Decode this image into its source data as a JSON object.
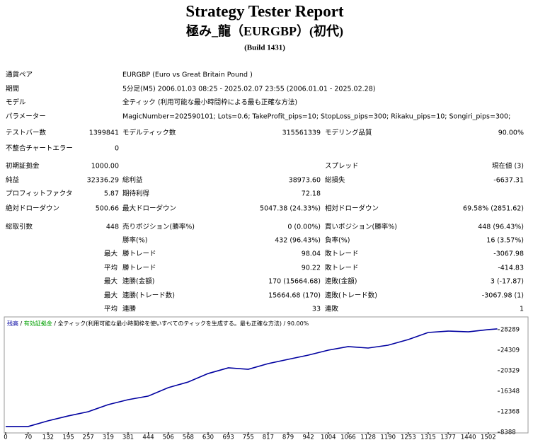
{
  "header": {
    "title": "Strategy Tester Report",
    "subtitle": "極み_龍（EURGBP）(初代)",
    "build": "(Build 1431)"
  },
  "info": [
    [
      "通貨ペア",
      "EURGBP (Euro vs Great Britain Pound )"
    ],
    [
      "期間",
      "5分足(M5) 2006.01.03 08:25 - 2025.02.07 23:55 (2006.01.01 - 2025.02.28)"
    ],
    [
      "モデル",
      "全ティック (利用可能な最小時間枠による最も正確な方法)"
    ],
    [
      "パラメーター",
      "MagicNumber=202590101; Lots=0.6; TakeProfit_pips=10; StopLoss_pips=300; Rikaku_pips=10; Songiri_pips=300;"
    ]
  ],
  "stats": [
    {
      "l1": "テストバー数",
      "v1": "1399841",
      "l2": "モデルティック数",
      "v2": "315561339",
      "l3": "モデリング品質",
      "v3": "90.00%"
    },
    {
      "l1": "不整合チャートエラー",
      "v1": "0"
    },
    {
      "l1": "初期証拠金",
      "v1": "1000.00",
      "l3": "スプレッド",
      "v3": "現在値 (3)"
    },
    {
      "l1": "純益",
      "v1": "32336.29",
      "l2": "総利益",
      "v2": "38973.60",
      "l3": "総損失",
      "v3": "-6637.31"
    },
    {
      "l1": "プロフィットファクタ",
      "v1": "5.87",
      "l2": "期待利得",
      "v2": "72.18"
    },
    {
      "l1": "絶対ドローダウン",
      "v1": "500.66",
      "l2": "最大ドローダウン",
      "v2": "5047.38 (24.33%)",
      "l3": "相対ドローダウン",
      "v3": "69.58% (2851.62)"
    },
    {
      "l1": "総取引数",
      "v1": "448",
      "l2": "売りポジション(勝率%)",
      "v2": "0 (0.00%)",
      "l3": "買いポジション(勝率%)",
      "v3": "448 (96.43%)"
    },
    {
      "l2": "勝率(%)",
      "v2": "432 (96.43%)",
      "l3": "負率(%)",
      "v3": "16 (3.57%)"
    },
    {
      "p": "最大",
      "l2": "勝トレード",
      "v2": "98.04",
      "l3": "敗トレード",
      "v3": "-3067.98"
    },
    {
      "p": "平均",
      "l2": "勝トレード",
      "v2": "90.22",
      "l3": "敗トレード",
      "v3": "-414.83"
    },
    {
      "p": "最大",
      "l2": "連勝(金額)",
      "v2": "170 (15664.68)",
      "l3": "連敗(金額)",
      "v3": "3 (-17.87)"
    },
    {
      "p": "最大",
      "l2": "連勝(トレード数)",
      "v2": "15664.68 (170)",
      "l3": "連敗(トレード数)",
      "v3": "-3067.98 (1)"
    },
    {
      "p": "平均",
      "l2": "連勝",
      "v2": "33",
      "l3": "連敗",
      "v3": "1"
    }
  ],
  "chart_data": {
    "type": "line",
    "x": [
      0,
      70,
      132,
      195,
      257,
      319,
      381,
      444,
      506,
      568,
      630,
      693,
      755,
      817,
      879,
      942,
      1004,
      1066,
      1128,
      1190,
      1253,
      1315,
      1377,
      1440,
      1502,
      1530
    ],
    "series": [
      {
        "name": "残高",
        "color": "#0000a0",
        "values": [
          9500,
          9500,
          10600,
          11550,
          12370,
          13740,
          14700,
          15400,
          17030,
          18130,
          19770,
          20880,
          20600,
          21700,
          22520,
          23350,
          24310,
          25000,
          24720,
          25270,
          26370,
          27740,
          28010,
          27870,
          28290,
          28430
        ]
      }
    ],
    "equity_label": "有効証拠金",
    "equity_color": "#00a000",
    "model_note": "全ティック(利用可能な最小時間枠を使いすべてのティックを生成する。最も正確な方法)",
    "quality": "90.00%",
    "separator": " / ",
    "xlim": [
      0,
      1531
    ],
    "xticks": [
      0,
      70,
      132,
      195,
      257,
      319,
      381,
      444,
      506,
      568,
      630,
      693,
      755,
      817,
      879,
      942,
      1004,
      1066,
      1128,
      1190,
      1253,
      1315,
      1377,
      1440,
      1502
    ],
    "ylim": [
      8388,
      28836
    ],
    "yticks": [
      8388,
      12368,
      16348,
      20329,
      24309,
      28289
    ]
  }
}
